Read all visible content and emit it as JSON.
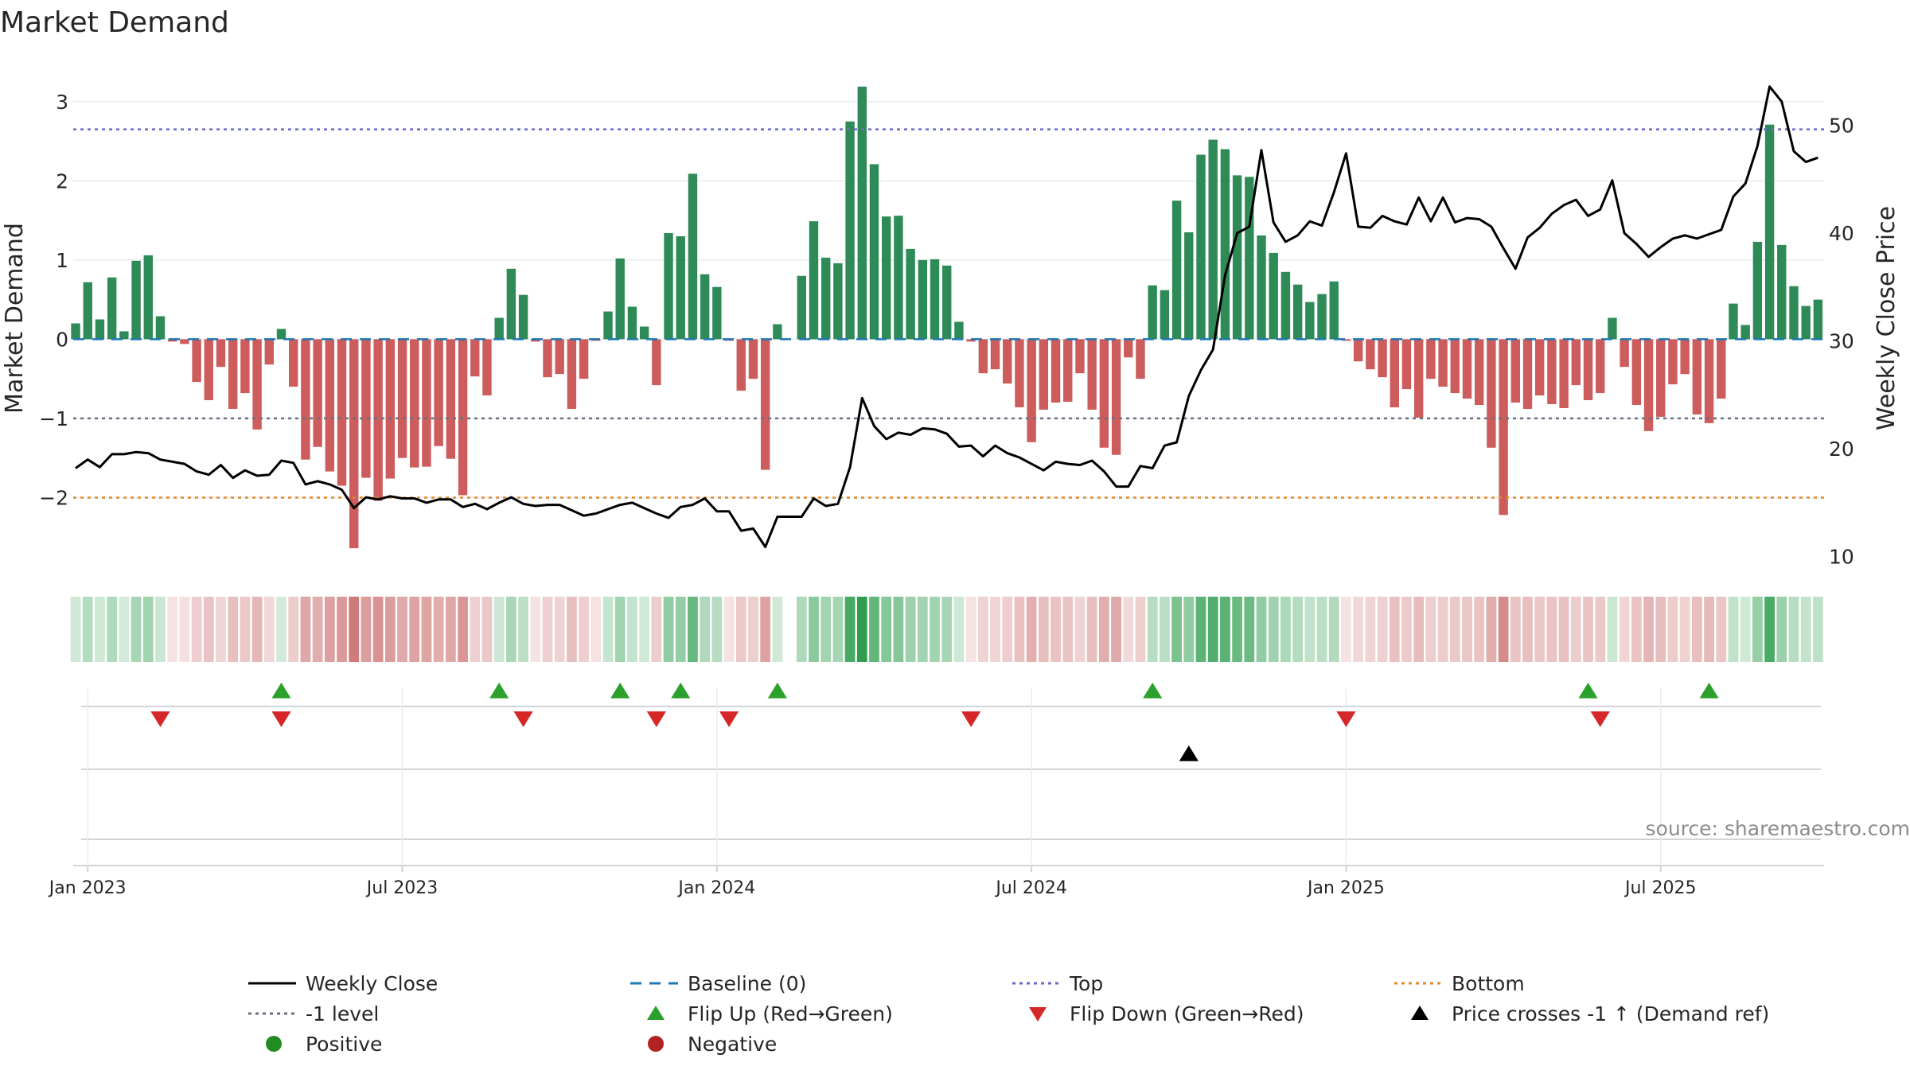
{
  "chart_data": {
    "type": "bar",
    "title": "Market Demand",
    "ylabel": "Market Demand",
    "ylabel_right": "Weekly Close Price",
    "ylim": [
      -2.95,
      3.45
    ],
    "ylim_right": [
      8.5,
      55.5
    ],
    "yticks": [
      -2,
      -1,
      0,
      1,
      2,
      3
    ],
    "yticks_right": [
      10,
      20,
      30,
      40,
      50
    ],
    "yticks_labels": [
      "−2",
      "−1",
      "0",
      "1",
      "2",
      "3"
    ],
    "yticks_right_labels": [
      "10",
      "20",
      "30",
      "40",
      "50"
    ],
    "x_ticks": [
      {
        "week": 0,
        "label": "Jan 2023"
      },
      {
        "week": 26,
        "label": "Jul 2023"
      },
      {
        "week": 52,
        "label": "Jan 2024"
      },
      {
        "week": 78,
        "label": "Jul 2024"
      },
      {
        "week": 104,
        "label": "Jan 2025"
      },
      {
        "week": 130,
        "label": "Jul 2025"
      }
    ],
    "x_range": [
      -1.2,
      143.5
    ],
    "start_week": -1,
    "demand": [
      0.2,
      0.72,
      0.25,
      0.78,
      0.1,
      0.99,
      1.06,
      0.29,
      -0.03,
      -0.06,
      -0.54,
      -0.77,
      -0.35,
      -0.88,
      -0.68,
      -1.14,
      -0.32,
      0.13,
      -0.6,
      -1.52,
      -1.36,
      -1.67,
      -1.85,
      -2.64,
      -1.75,
      -2.04,
      -1.76,
      -1.5,
      -1.62,
      -1.61,
      -1.35,
      -1.51,
      -1.97,
      -0.47,
      -0.71,
      0.27,
      0.89,
      0.56,
      -0.03,
      -0.48,
      -0.44,
      -0.88,
      -0.5,
      -0.02,
      0.35,
      1.02,
      0.41,
      0.16,
      -0.58,
      1.34,
      1.3,
      2.09,
      0.82,
      0.66,
      -0.02,
      -0.65,
      -0.5,
      -1.65,
      0.19,
      null,
      0.8,
      1.49,
      1.03,
      0.96,
      2.75,
      3.19,
      2.21,
      1.55,
      1.56,
      1.14,
      1.0,
      1.01,
      0.93,
      0.22,
      -0.03,
      -0.43,
      -0.38,
      -0.56,
      -0.86,
      -1.3,
      -0.89,
      -0.8,
      -0.79,
      -0.43,
      -0.89,
      -1.37,
      -1.46,
      -0.23,
      -0.5,
      0.68,
      0.62,
      1.75,
      1.35,
      2.33,
      2.52,
      2.4,
      2.07,
      2.05,
      1.31,
      1.09,
      0.85,
      0.69,
      0.47,
      0.57,
      0.73,
      -0.02,
      -0.28,
      -0.38,
      -0.48,
      -0.86,
      -0.63,
      -0.99,
      -0.5,
      -0.6,
      -0.68,
      -0.75,
      -0.83,
      -1.37,
      -2.22,
      -0.8,
      -0.88,
      -0.71,
      -0.82,
      -0.87,
      -0.58,
      -0.77,
      -0.68,
      0.27,
      -0.35,
      -0.83,
      -1.16,
      -0.98,
      -0.57,
      -0.44,
      -0.95,
      -1.06,
      -0.75,
      0.45,
      0.18,
      1.23,
      2.71,
      1.19,
      0.67,
      0.42,
      0.5
    ],
    "price_series": [
      [
        -1,
        18.2
      ],
      [
        0,
        19.0
      ],
      [
        1,
        18.3
      ],
      [
        2,
        19.5
      ],
      [
        3,
        19.5
      ],
      [
        4,
        19.7
      ],
      [
        5,
        19.6
      ],
      [
        6,
        19.0
      ],
      [
        7,
        18.8
      ],
      [
        8,
        18.6
      ],
      [
        9,
        17.9
      ],
      [
        10,
        17.6
      ],
      [
        11,
        18.5
      ],
      [
        12,
        17.3
      ],
      [
        13,
        18.0
      ],
      [
        14,
        17.5
      ],
      [
        15,
        17.6
      ],
      [
        16,
        18.9
      ],
      [
        17,
        18.7
      ],
      [
        18,
        16.7
      ],
      [
        19,
        17.0
      ],
      [
        20,
        16.7
      ],
      [
        21,
        16.2
      ],
      [
        22,
        14.5
      ],
      [
        23,
        15.5
      ],
      [
        24,
        15.3
      ],
      [
        25,
        15.6
      ],
      [
        26,
        15.4
      ],
      [
        27,
        15.4
      ],
      [
        28,
        15.0
      ],
      [
        29,
        15.3
      ],
      [
        30,
        15.3
      ],
      [
        31,
        14.6
      ],
      [
        32,
        14.9
      ],
      [
        33,
        14.4
      ],
      [
        34,
        15.0
      ],
      [
        35,
        15.5
      ],
      [
        36,
        14.9
      ],
      [
        37,
        14.7
      ],
      [
        38,
        14.8
      ],
      [
        39,
        14.8
      ],
      [
        40,
        14.3
      ],
      [
        41,
        13.8
      ],
      [
        42,
        14.0
      ],
      [
        43,
        14.4
      ],
      [
        44,
        14.8
      ],
      [
        45,
        15.0
      ],
      [
        46,
        14.5
      ],
      [
        47,
        14.0
      ],
      [
        48,
        13.6
      ],
      [
        49,
        14.6
      ],
      [
        50,
        14.8
      ],
      [
        51,
        15.4
      ],
      [
        52,
        14.2
      ],
      [
        53,
        14.2
      ],
      [
        54,
        12.4
      ],
      [
        55,
        12.6
      ],
      [
        56,
        10.9
      ],
      [
        57,
        13.7
      ],
      [
        58,
        13.7
      ],
      [
        59,
        13.7
      ],
      [
        60,
        15.4
      ],
      [
        61,
        14.7
      ],
      [
        62,
        14.9
      ],
      [
        63,
        18.3
      ],
      [
        64,
        24.7
      ],
      [
        65,
        22.1
      ],
      [
        66,
        20.9
      ],
      [
        67,
        21.5
      ],
      [
        68,
        21.3
      ],
      [
        69,
        21.9
      ],
      [
        70,
        21.8
      ],
      [
        71,
        21.4
      ],
      [
        72,
        20.2
      ],
      [
        73,
        20.3
      ],
      [
        74,
        19.3
      ],
      [
        75,
        20.3
      ],
      [
        76,
        19.6
      ],
      [
        77,
        19.2
      ],
      [
        78,
        18.6
      ],
      [
        79,
        18.0
      ],
      [
        80,
        18.8
      ],
      [
        81,
        18.6
      ],
      [
        82,
        18.5
      ],
      [
        83,
        18.9
      ],
      [
        84,
        17.9
      ],
      [
        85,
        16.5
      ],
      [
        86,
        16.5
      ],
      [
        87,
        18.4
      ],
      [
        88,
        18.2
      ],
      [
        89,
        20.3
      ],
      [
        90,
        20.6
      ],
      [
        91,
        24.9
      ],
      [
        92,
        27.3
      ],
      [
        93,
        29.2
      ],
      [
        94,
        36.1
      ],
      [
        95,
        40.0
      ],
      [
        96,
        40.6
      ],
      [
        97,
        47.7
      ],
      [
        98,
        41.0
      ],
      [
        99,
        39.2
      ],
      [
        100,
        39.8
      ],
      [
        101,
        41.1
      ],
      [
        102,
        40.7
      ],
      [
        103,
        43.8
      ],
      [
        104,
        47.4
      ],
      [
        105,
        40.6
      ],
      [
        106,
        40.5
      ],
      [
        107,
        41.6
      ],
      [
        108,
        41.1
      ],
      [
        109,
        40.8
      ],
      [
        110,
        43.3
      ],
      [
        111,
        41.1
      ],
      [
        112,
        43.3
      ],
      [
        113,
        41.0
      ],
      [
        114,
        41.4
      ],
      [
        115,
        41.3
      ],
      [
        116,
        40.6
      ],
      [
        117,
        38.6
      ],
      [
        118,
        36.7
      ],
      [
        119,
        39.6
      ],
      [
        120,
        40.5
      ],
      [
        121,
        41.8
      ],
      [
        122,
        42.6
      ],
      [
        123,
        43.1
      ],
      [
        124,
        41.6
      ],
      [
        125,
        42.2
      ],
      [
        126,
        44.9
      ],
      [
        127,
        40.0
      ],
      [
        128,
        39.0
      ],
      [
        129,
        37.8
      ],
      [
        130,
        38.7
      ],
      [
        131,
        39.5
      ],
      [
        132,
        39.8
      ],
      [
        133,
        39.5
      ],
      [
        134,
        39.9
      ],
      [
        135,
        40.3
      ],
      [
        136,
        43.4
      ],
      [
        137,
        44.6
      ],
      [
        138,
        48.1
      ],
      [
        139,
        53.6
      ],
      [
        140,
        52.2
      ],
      [
        141,
        47.6
      ],
      [
        142,
        46.6
      ],
      [
        143,
        47.0
      ]
    ],
    "reference_lines": {
      "top": 2.65,
      "minus_one": -1,
      "bottom": -2,
      "baseline": 0
    },
    "flip_up_weeks": [
      16,
      34,
      44,
      49,
      57,
      88,
      124,
      134
    ],
    "flip_down_weeks": [
      6,
      16,
      36,
      47,
      53,
      73,
      104,
      125
    ],
    "price_cross_weeks": [
      91
    ],
    "colors": {
      "positive_bar": "#2e8b57",
      "negative_bar": "#cd5c5c",
      "price_line": "#000000",
      "baseline": "#1f77b4",
      "top_line": "#6a6ac9",
      "minus_one_line": "#6e6e80",
      "bottom_line": "#e08a2c",
      "flip_up": "#2ca02c",
      "flip_down": "#d62728",
      "price_cross": "#000000",
      "heat_green": "#2e9e4e",
      "heat_red": "#c86464"
    },
    "source_note": "source: sharemaestro.com",
    "legend": [
      {
        "label": "Weekly Close",
        "marker": "solid-line",
        "color": "#000000"
      },
      {
        "label": "Baseline (0)",
        "marker": "dashed-line",
        "color": "#1f77b4"
      },
      {
        "label": "Top",
        "marker": "dotted-line",
        "color": "#6a6ac9"
      },
      {
        "label": "Bottom",
        "marker": "dotted-line",
        "color": "#e08a2c"
      },
      {
        "label": "-1 level",
        "marker": "dotted-line",
        "color": "#6e6e80"
      },
      {
        "label": "Flip Up (Red→Green)",
        "marker": "triangle-up",
        "color": "#2ca02c"
      },
      {
        "label": "Flip Down (Green→Red)",
        "marker": "triangle-down",
        "color": "#d62728"
      },
      {
        "label": "Price crosses -1 ↑ (Demand ref)",
        "marker": "triangle-up",
        "color": "#000000"
      },
      {
        "label": "Positive",
        "marker": "circle",
        "color": "#228b22"
      },
      {
        "label": "Negative",
        "marker": "circle",
        "color": "#b22222"
      }
    ]
  }
}
